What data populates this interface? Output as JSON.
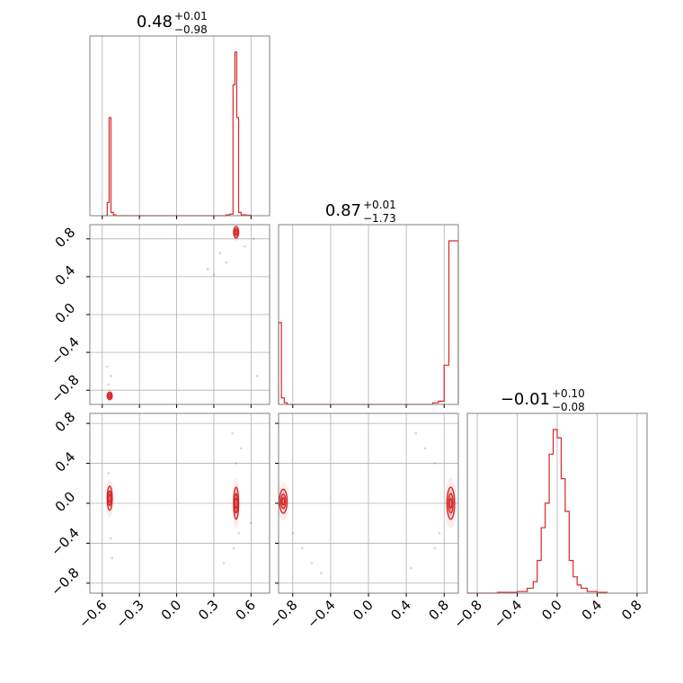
{
  "chart_data": {
    "type": "corner",
    "color": "#d62728",
    "grid": true,
    "parameters": [
      {
        "range": [
          -0.7,
          0.75
        ],
        "ticks": [
          "-0.6",
          "-0.3",
          "0.0",
          "0.3",
          "0.6"
        ],
        "tick_values": [
          -0.6,
          -0.3,
          0.0,
          0.3,
          0.6
        ],
        "title": {
          "median": "0.48",
          "plus": "+0.01",
          "minus": "−0.98"
        },
        "histogram": {
          "bins": [
            [
              -0.58,
              0.0
            ],
            [
              -0.56,
              0.08
            ],
            [
              -0.545,
              0.6
            ],
            [
              -0.53,
              0.02
            ],
            [
              -0.51,
              0.005
            ],
            [
              -0.49,
              0.0
            ],
            [
              0.38,
              0.0
            ],
            [
              0.4,
              0.005
            ],
            [
              0.43,
              0.01
            ],
            [
              0.455,
              0.8
            ],
            [
              0.47,
              1.0
            ],
            [
              0.485,
              0.6
            ],
            [
              0.5,
              0.02
            ],
            [
              0.52,
              0.005
            ],
            [
              0.56,
              0.003
            ],
            [
              0.6,
              0.0
            ]
          ]
        }
      },
      {
        "range": [
          -0.95,
          0.95
        ],
        "ticks": [
          "-0.8",
          "-0.4",
          "0.0",
          "0.4",
          "0.8"
        ],
        "tick_values": [
          -0.8,
          -0.4,
          0.0,
          0.4,
          0.8
        ],
        "title": {
          "median": "0.87",
          "plus": "+0.01",
          "minus": "−1.73"
        },
        "histogram": {
          "bins": [
            [
              -0.95,
              0.5
            ],
            [
              -0.92,
              0.04
            ],
            [
              -0.89,
              0.01
            ],
            [
              -0.86,
              0.0
            ],
            [
              0.65,
              0.0
            ],
            [
              0.68,
              0.01
            ],
            [
              0.74,
              0.02
            ],
            [
              0.8,
              0.24
            ],
            [
              0.85,
              1.0
            ],
            [
              0.95,
              0.0
            ]
          ]
        }
      },
      {
        "range": [
          -0.9,
          0.9
        ],
        "ticks": [
          "-0.8",
          "-0.4",
          "0.0",
          "0.4",
          "0.8"
        ],
        "tick_values": [
          -0.8,
          -0.4,
          0.0,
          0.4,
          0.8
        ],
        "title": {
          "median": "−0.01",
          "plus": "+0.10",
          "minus": "−0.08"
        },
        "histogram": {
          "bins": [
            [
              -0.9,
              0.0
            ],
            [
              -0.6,
              0.005
            ],
            [
              -0.4,
              0.01
            ],
            [
              -0.3,
              0.03
            ],
            [
              -0.24,
              0.07
            ],
            [
              -0.2,
              0.2
            ],
            [
              -0.16,
              0.4
            ],
            [
              -0.12,
              0.55
            ],
            [
              -0.08,
              0.85
            ],
            [
              -0.04,
              1.0
            ],
            [
              0.0,
              0.95
            ],
            [
              0.04,
              0.7
            ],
            [
              0.08,
              0.5
            ],
            [
              0.12,
              0.2
            ],
            [
              0.16,
              0.1
            ],
            [
              0.2,
              0.05
            ],
            [
              0.24,
              0.03
            ],
            [
              0.3,
              0.01
            ],
            [
              0.4,
              0.005
            ],
            [
              0.5,
              0.0
            ]
          ]
        }
      }
    ],
    "pairs": [
      {
        "x_param": 0,
        "y_param": 1,
        "clusters": [
          {
            "cx": 0.48,
            "cy": 0.87,
            "sx": 0.01,
            "sy": 0.03,
            "weight": 1.0
          },
          {
            "cx": -0.54,
            "cy": -0.86,
            "sx": 0.01,
            "sy": 0.02,
            "weight": 0.6
          }
        ],
        "scatter": [
          [
            0.4,
            0.55
          ],
          [
            0.55,
            0.72
          ],
          [
            0.3,
            0.42
          ],
          [
            0.62,
            0.8
          ],
          [
            0.25,
            0.48
          ],
          [
            -0.56,
            -0.55
          ],
          [
            -0.53,
            -0.65
          ],
          [
            -0.55,
            -0.74
          ],
          [
            0.65,
            -0.65
          ],
          [
            0.35,
            0.65
          ]
        ]
      },
      {
        "x_param": 0,
        "y_param": 2,
        "clusters": [
          {
            "cx": 0.48,
            "cy": 0.0,
            "sx": 0.01,
            "sy": 0.08,
            "weight": 1.0
          },
          {
            "cx": -0.54,
            "cy": 0.05,
            "sx": 0.01,
            "sy": 0.06,
            "weight": 0.6
          }
        ],
        "scatter": [
          [
            0.5,
            -0.3
          ],
          [
            0.48,
            0.4
          ],
          [
            0.46,
            -0.45
          ],
          [
            0.52,
            0.55
          ],
          [
            -0.53,
            -0.35
          ],
          [
            -0.55,
            0.3
          ],
          [
            -0.52,
            -0.55
          ],
          [
            0.38,
            -0.6
          ],
          [
            0.6,
            -0.2
          ],
          [
            0.45,
            0.7
          ]
        ]
      },
      {
        "x_param": 1,
        "y_param": 2,
        "clusters": [
          {
            "cx": 0.87,
            "cy": 0.0,
            "sx": 0.02,
            "sy": 0.08,
            "weight": 1.0
          },
          {
            "cx": -0.9,
            "cy": 0.02,
            "sx": 0.02,
            "sy": 0.06,
            "weight": 0.6
          }
        ],
        "scatter": [
          [
            -0.7,
            -0.45
          ],
          [
            -0.6,
            -0.6
          ],
          [
            -0.5,
            -0.7
          ],
          [
            0.5,
            0.7
          ],
          [
            0.6,
            0.55
          ],
          [
            0.7,
            0.4
          ],
          [
            0.75,
            -0.3
          ],
          [
            0.7,
            -0.45
          ],
          [
            -0.8,
            -0.3
          ],
          [
            0.45,
            -0.65
          ]
        ]
      }
    ]
  }
}
